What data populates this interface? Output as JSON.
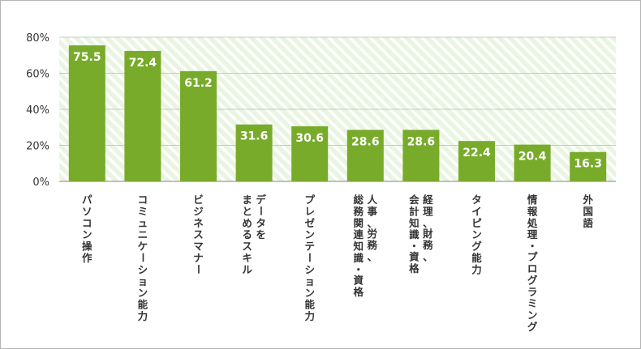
{
  "chart_data": {
    "type": "bar",
    "categories": [
      [
        "パソコン操作"
      ],
      [
        "コミュニケーション能力"
      ],
      [
        "ビジネスマナー"
      ],
      [
        "データを",
        "まとめるスキル"
      ],
      [
        "プレゼンテーション能力"
      ],
      [
        "人事、労務、",
        "総務関連知識・資格"
      ],
      [
        "経理、財務、",
        "会計知識・資格"
      ],
      [
        "タイピング能力"
      ],
      [
        "情報処理・プログラミング"
      ],
      [
        "外国語"
      ]
    ],
    "values": [
      75.5,
      72.4,
      61.2,
      31.6,
      30.6,
      28.6,
      28.6,
      22.4,
      20.4,
      16.3
    ],
    "value_labels": [
      "75.5",
      "72.4",
      "61.2",
      "31.6",
      "30.6",
      "28.6",
      "28.6",
      "22.4",
      "20.4",
      "16.3"
    ],
    "ylim": [
      0,
      80
    ],
    "yticks": [
      0,
      20,
      40,
      60,
      80
    ],
    "ytick_labels": [
      "0%",
      "20%",
      "40%",
      "60%",
      "80%"
    ],
    "title": "",
    "xlabel": "",
    "ylabel": "",
    "grid": true,
    "colors": {
      "bar": "#78ab2a",
      "plot_background": "#e9f5e1",
      "stripe": "#ffffff",
      "gridline": "#c8c8c8",
      "axis": "#9a9a9a"
    }
  }
}
